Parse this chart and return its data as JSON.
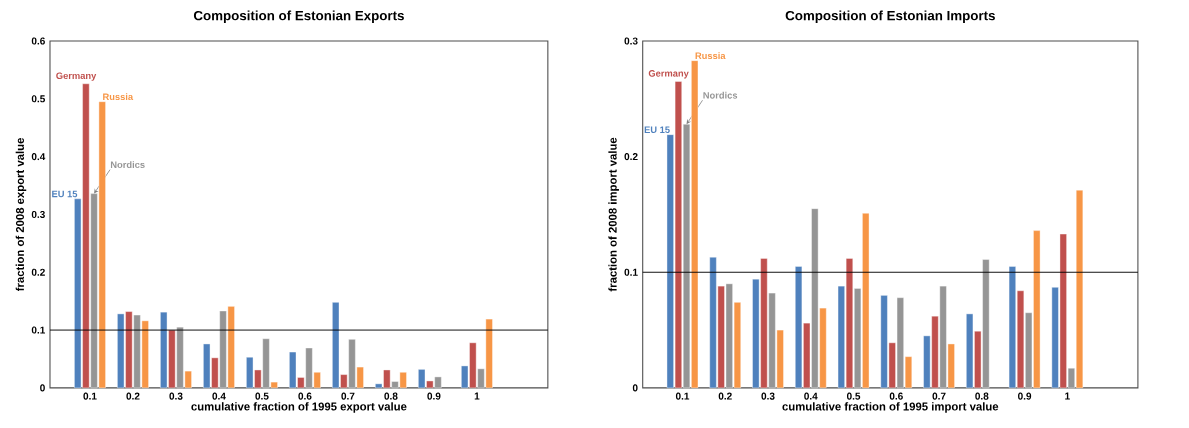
{
  "chart_data": [
    {
      "type": "bar",
      "title": "Composition of Estonian Exports",
      "xlabel": "cumulative fraction of 1995 export value",
      "ylabel": "fraction of 2008 export value",
      "categories": [
        "0.1",
        "0.2",
        "0.3",
        "0.4",
        "0.5",
        "0.6",
        "0.7",
        "0.8",
        "0.9",
        "1"
      ],
      "series": [
        {
          "name": "EU 15",
          "color": "#4f81bd",
          "values": [
            0.327,
            0.128,
            0.131,
            0.076,
            0.053,
            0.062,
            0.148,
            0.007,
            0.032,
            0.038
          ]
        },
        {
          "name": "Germany",
          "color": "#c0504d",
          "values": [
            0.526,
            0.132,
            0.1,
            0.052,
            0.031,
            0.018,
            0.023,
            0.031,
            0.012,
            0.078
          ]
        },
        {
          "name": "Nordics",
          "color": "#959595",
          "values": [
            0.336,
            0.126,
            0.105,
            0.133,
            0.085,
            0.069,
            0.084,
            0.011,
            0.019,
            0.033
          ]
        },
        {
          "name": "Russia",
          "color": "#f79646",
          "values": [
            0.495,
            0.116,
            0.029,
            0.141,
            0.01,
            0.027,
            0.036,
            0.027,
            null,
            0.119
          ]
        }
      ],
      "ylim": [
        0,
        0.6
      ],
      "yticks": [
        0,
        0.1,
        0.2,
        0.3,
        0.4,
        0.5,
        0.6
      ],
      "ref_lines": [
        {
          "axis": "y",
          "value": 0.1
        }
      ],
      "grid": false
    },
    {
      "type": "bar",
      "title": "Composition of Estonian Imports",
      "xlabel": "cumulative fraction of 1995 import value",
      "ylabel": "fraction of 2008 import value",
      "categories": [
        "0.1",
        "0.2",
        "0.3",
        "0.4",
        "0.5",
        "0.6",
        "0.7",
        "0.8",
        "0.9",
        "1"
      ],
      "series": [
        {
          "name": "EU 15",
          "color": "#4f81bd",
          "values": [
            0.219,
            0.113,
            0.094,
            0.105,
            0.088,
            0.08,
            0.045,
            0.064,
            0.105,
            0.087
          ]
        },
        {
          "name": "Germany",
          "color": "#c0504d",
          "values": [
            0.265,
            0.088,
            0.112,
            0.056,
            0.112,
            0.039,
            0.062,
            0.049,
            0.084,
            0.133
          ]
        },
        {
          "name": "Nordics",
          "color": "#959595",
          "values": [
            0.228,
            0.09,
            0.082,
            0.155,
            0.086,
            0.078,
            0.088,
            0.111,
            0.065,
            0.017
          ]
        },
        {
          "name": "Russia",
          "color": "#f79646",
          "values": [
            0.283,
            0.074,
            0.05,
            0.069,
            0.151,
            0.027,
            0.038,
            null,
            0.136,
            0.171
          ]
        }
      ],
      "ylim": [
        0,
        0.3
      ],
      "yticks": [
        0,
        0.1,
        0.2,
        0.3
      ],
      "ref_lines": [
        {
          "axis": "y",
          "value": 0.1
        }
      ],
      "grid": false
    }
  ]
}
